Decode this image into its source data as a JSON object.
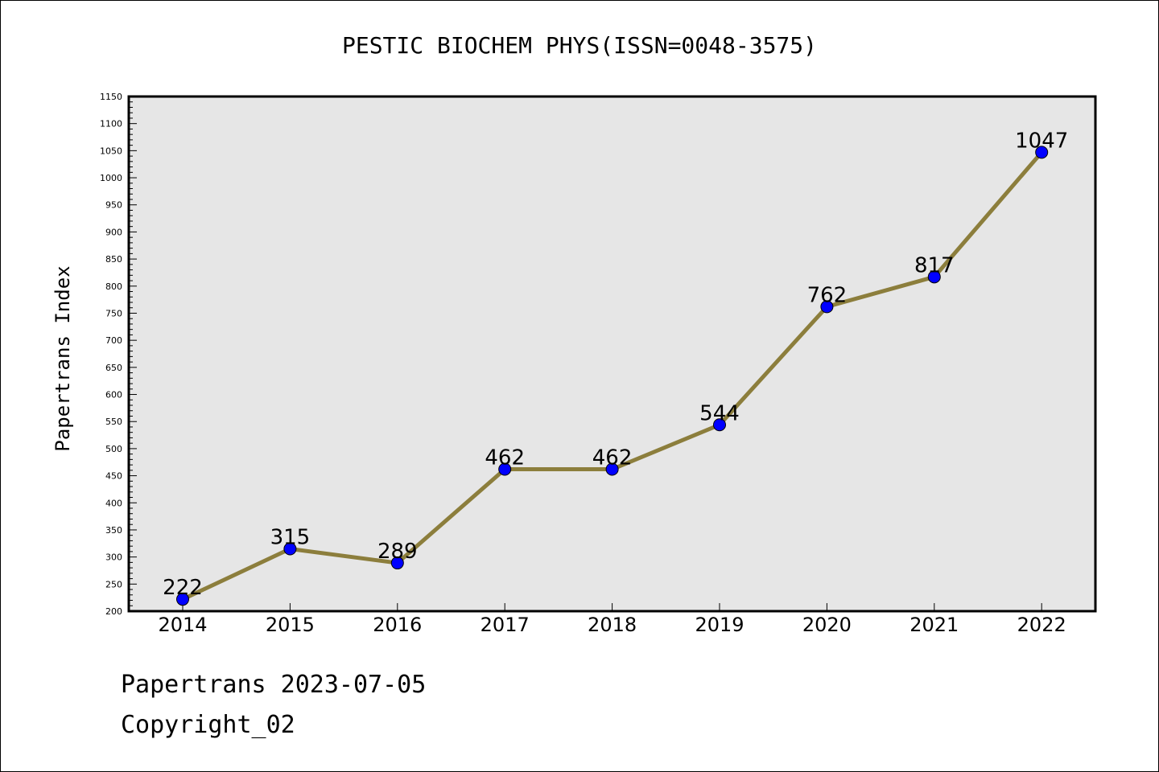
{
  "chart_data": {
    "type": "line",
    "title": "PESTIC BIOCHEM PHYS(ISSN=0048-3575)",
    "xlabel": "",
    "ylabel": "Papertrans Index",
    "categories": [
      "2014",
      "2015",
      "2016",
      "2017",
      "2018",
      "2019",
      "2020",
      "2021",
      "2022"
    ],
    "series": [
      {
        "values": [
          222,
          315,
          289,
          462,
          462,
          544,
          762,
          817,
          1047
        ]
      }
    ],
    "data_labels": [
      "222",
      "315",
      "289",
      "462",
      "462",
      "544",
      "762",
      "817",
      "1047"
    ],
    "ylim": [
      200,
      1150
    ],
    "yticks": [
      200,
      250,
      300,
      350,
      400,
      450,
      500,
      550,
      600,
      650,
      700,
      750,
      800,
      850,
      900,
      950,
      1000,
      1050,
      1100,
      1150
    ],
    "ytick_labels": [
      "200",
      "250",
      "300",
      "350",
      "400",
      "450",
      "500",
      "550",
      "600",
      "650",
      "700",
      "750",
      "800",
      "850",
      "900",
      "950",
      "1000",
      "1050",
      "1100",
      "1150"
    ],
    "grid": false,
    "legend": "none",
    "colors": {
      "line": "#8c7e3c",
      "marker": "#0000ff",
      "plot_background": "#e6e6e6"
    }
  },
  "footer": {
    "line1": "Papertrans 2023-07-05",
    "line2": "Copyright_02"
  }
}
